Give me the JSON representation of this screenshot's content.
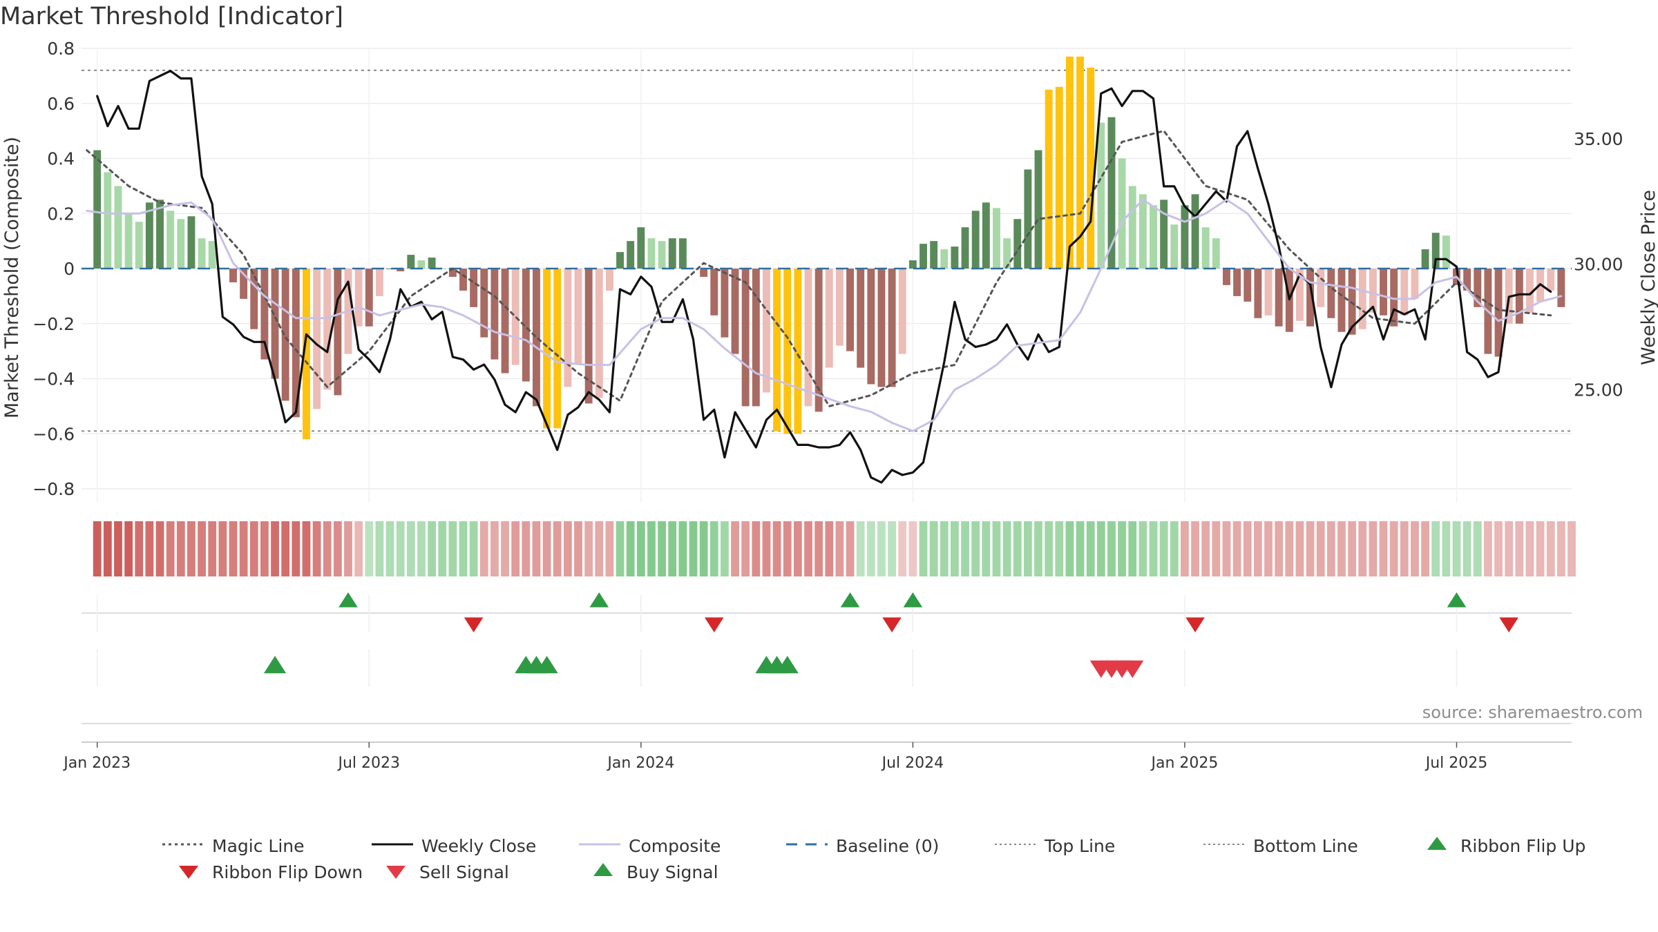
{
  "chart_data": {
    "type": "bar",
    "title": "Market Threshold [Indicator]",
    "ylabel_left": "Market Threshold (Composite)",
    "ylabel_right": "Weekly Close Price",
    "y_left_range": [
      -0.85,
      0.8
    ],
    "y_left_ticks": [
      0.8,
      0.6,
      0.4,
      0.2,
      0,
      -0.2,
      -0.4,
      -0.6,
      -0.8
    ],
    "y_left_tick_labels": [
      "0.8",
      "0.6",
      "0.4",
      "0.2",
      "0",
      "−0.2",
      "−0.4",
      "−0.6",
      "−0.8"
    ],
    "y_right_range": [
      20.5,
      38.6
    ],
    "y_right_ticks": [
      35,
      30,
      25
    ],
    "y_right_tick_labels": [
      "35.00",
      "30.00",
      "25.00"
    ],
    "x_ticks": [
      {
        "label": "Jan 2023",
        "week": 0
      },
      {
        "label": "Jul 2023",
        "week": 26
      },
      {
        "label": "Jan 2024",
        "week": 52
      },
      {
        "label": "Jul 2024",
        "week": 78
      },
      {
        "label": "Jan 2025",
        "week": 104
      },
      {
        "label": "Jul 2025",
        "week": 130
      }
    ],
    "week_range": [
      -1.5,
      141
    ],
    "top_line": 0.72,
    "bottom_line": -0.59,
    "baseline": 0,
    "composite_histogram": [
      0.43,
      0.35,
      0.3,
      0.2,
      0.17,
      0.24,
      0.25,
      0.21,
      0.18,
      0.19,
      0.11,
      0.1,
      0.0,
      -0.05,
      -0.11,
      -0.22,
      -0.33,
      -0.4,
      -0.48,
      -0.54,
      -0.62,
      -0.51,
      -0.44,
      -0.46,
      -0.31,
      -0.21,
      -0.21,
      -0.1,
      0.0,
      -0.01,
      0.05,
      0.03,
      0.04,
      0.0,
      -0.03,
      -0.08,
      -0.14,
      -0.25,
      -0.33,
      -0.38,
      -0.35,
      -0.41,
      -0.5,
      -0.58,
      -0.58,
      -0.43,
      -0.35,
      -0.49,
      -0.47,
      -0.08,
      0.06,
      0.1,
      0.15,
      0.11,
      0.1,
      0.11,
      0.11,
      0.0,
      -0.03,
      -0.17,
      -0.25,
      -0.31,
      -0.5,
      -0.5,
      -0.45,
      -0.59,
      -0.6,
      -0.6,
      -0.5,
      -0.52,
      -0.36,
      -0.28,
      -0.3,
      -0.36,
      -0.42,
      -0.43,
      -0.43,
      -0.31,
      0.03,
      0.09,
      0.1,
      0.07,
      0.08,
      0.15,
      0.21,
      0.24,
      0.22,
      0.11,
      0.18,
      0.36,
      0.43,
      0.65,
      0.66,
      0.77,
      0.77,
      0.73,
      0.53,
      0.55,
      0.4,
      0.3,
      0.27,
      0.23,
      0.25,
      0.16,
      0.23,
      0.27,
      0.15,
      0.11,
      -0.06,
      -0.1,
      -0.12,
      -0.18,
      -0.17,
      -0.21,
      -0.23,
      -0.19,
      -0.21,
      -0.14,
      -0.18,
      -0.23,
      -0.24,
      -0.22,
      -0.16,
      -0.17,
      -0.21,
      -0.17,
      -0.11,
      0.07,
      0.13,
      0.12,
      -0.06,
      -0.08,
      -0.14,
      -0.31,
      -0.32,
      -0.2,
      -0.2,
      -0.16,
      -0.12,
      -0.08,
      -0.14
    ],
    "composite_bar_colors": {
      "positive_light": "#a8d8a8",
      "positive_dark": "#5a8a5a",
      "negative_light": "#ecbcb7",
      "negative_dark": "#a86a62",
      "extreme": "#ffc20e"
    },
    "series": [
      {
        "name": "Magic Line",
        "axis": "left",
        "color": "#555555",
        "points": [
          [
            -1,
            0.43
          ],
          [
            3,
            0.3
          ],
          [
            6,
            0.24
          ],
          [
            10,
            0.22
          ],
          [
            14,
            0.05
          ],
          [
            18,
            -0.25
          ],
          [
            22,
            -0.43
          ],
          [
            26,
            -0.3
          ],
          [
            30,
            -0.1
          ],
          [
            34,
            0.0
          ],
          [
            38,
            -0.1
          ],
          [
            42,
            -0.25
          ],
          [
            46,
            -0.38
          ],
          [
            50,
            -0.48
          ],
          [
            54,
            -0.12
          ],
          [
            58,
            0.02
          ],
          [
            62,
            -0.05
          ],
          [
            66,
            -0.25
          ],
          [
            70,
            -0.5
          ],
          [
            74,
            -0.46
          ],
          [
            78,
            -0.38
          ],
          [
            82,
            -0.35
          ],
          [
            86,
            -0.05
          ],
          [
            90,
            0.18
          ],
          [
            94,
            0.2
          ],
          [
            98,
            0.46
          ],
          [
            102,
            0.5
          ],
          [
            106,
            0.3
          ],
          [
            110,
            0.25
          ],
          [
            114,
            0.07
          ],
          [
            118,
            -0.07
          ],
          [
            122,
            -0.18
          ],
          [
            126,
            -0.2
          ],
          [
            130,
            -0.05
          ],
          [
            134,
            -0.15
          ],
          [
            139,
            -0.17
          ]
        ]
      },
      {
        "name": "Weekly Close",
        "axis": "right",
        "color": "#111111",
        "values": [
          36.7,
          35.5,
          36.3,
          35.4,
          35.4,
          37.3,
          37.5,
          37.7,
          37.4,
          37.4,
          33.5,
          32.4,
          27.9,
          27.6,
          27.1,
          26.9,
          26.9,
          25.4,
          23.7,
          24.1,
          27.2,
          26.8,
          26.5,
          28.6,
          29.3,
          26.6,
          26.2,
          25.7,
          27.0,
          29.0,
          28.3,
          28.5,
          27.8,
          28.1,
          26.3,
          26.2,
          25.8,
          26.0,
          25.4,
          24.4,
          24.1,
          24.9,
          24.6,
          23.6,
          22.6,
          24.0,
          24.3,
          24.9,
          24.6,
          24.1,
          29.0,
          28.8,
          29.5,
          29.1,
          27.7,
          27.7,
          28.6,
          27.0,
          23.8,
          24.2,
          22.3,
          24.1,
          23.4,
          22.7,
          23.8,
          24.2,
          23.5,
          22.8,
          22.8,
          22.7,
          22.7,
          22.8,
          23.3,
          22.6,
          21.5,
          21.3,
          21.8,
          21.6,
          21.7,
          22.1,
          24.1,
          26.1,
          28.5,
          27.0,
          26.7,
          26.8,
          27.0,
          27.6,
          26.8,
          26.2,
          27.2,
          26.5,
          26.7,
          30.7,
          31.1,
          31.7,
          36.8,
          37.0,
          36.3,
          36.9,
          36.9,
          36.6,
          33.1,
          33.1,
          32.3,
          31.9,
          32.4,
          32.9,
          32.5,
          34.7,
          35.3,
          33.8,
          32.4,
          30.7,
          28.6,
          29.6,
          29.2,
          26.7,
          25.1,
          26.8,
          27.5,
          27.9,
          28.3,
          27.0,
          28.2,
          28.0,
          28.2,
          27.0,
          30.2,
          30.2,
          29.9,
          26.5,
          26.2,
          25.5,
          25.7,
          28.7,
          28.8,
          28.8,
          29.2,
          28.9
        ]
      },
      {
        "name": "Composite",
        "axis": "left",
        "color": "#c8c1e6",
        "points": [
          [
            -1,
            0.21
          ],
          [
            1,
            0.2
          ],
          [
            4,
            0.2
          ],
          [
            7,
            0.23
          ],
          [
            9,
            0.24
          ],
          [
            11,
            0.18
          ],
          [
            13,
            0.02
          ],
          [
            16,
            -0.1
          ],
          [
            19,
            -0.18
          ],
          [
            22,
            -0.18
          ],
          [
            25,
            -0.14
          ],
          [
            27,
            -0.17
          ],
          [
            29,
            -0.15
          ],
          [
            31,
            -0.13
          ],
          [
            33,
            -0.14
          ],
          [
            35,
            -0.17
          ],
          [
            38,
            -0.23
          ],
          [
            41,
            -0.26
          ],
          [
            44,
            -0.34
          ],
          [
            47,
            -0.35
          ],
          [
            49,
            -0.35
          ],
          [
            52,
            -0.22
          ],
          [
            54,
            -0.18
          ],
          [
            56,
            -0.18
          ],
          [
            58,
            -0.22
          ],
          [
            60,
            -0.29
          ],
          [
            63,
            -0.38
          ],
          [
            66,
            -0.42
          ],
          [
            69,
            -0.46
          ],
          [
            72,
            -0.5
          ],
          [
            74,
            -0.52
          ],
          [
            76,
            -0.56
          ],
          [
            78,
            -0.59
          ],
          [
            80,
            -0.55
          ],
          [
            82,
            -0.44
          ],
          [
            84,
            -0.4
          ],
          [
            86,
            -0.35
          ],
          [
            88,
            -0.28
          ],
          [
            90,
            -0.27
          ],
          [
            92,
            -0.26
          ],
          [
            94,
            -0.16
          ],
          [
            96,
            0.0
          ],
          [
            98,
            0.17
          ],
          [
            100,
            0.25
          ],
          [
            102,
            0.2
          ],
          [
            104,
            0.17
          ],
          [
            106,
            0.2
          ],
          [
            108,
            0.25
          ],
          [
            110,
            0.2
          ],
          [
            112,
            0.1
          ],
          [
            114,
            0.0
          ],
          [
            116,
            -0.05
          ],
          [
            118,
            -0.06
          ],
          [
            120,
            -0.07
          ],
          [
            122,
            -0.09
          ],
          [
            124,
            -0.11
          ],
          [
            126,
            -0.11
          ],
          [
            128,
            -0.05
          ],
          [
            130,
            -0.03
          ],
          [
            132,
            -0.12
          ],
          [
            134,
            -0.19
          ],
          [
            136,
            -0.16
          ],
          [
            138,
            -0.12
          ],
          [
            140,
            -0.1
          ]
        ]
      },
      {
        "name": "Baseline (0)",
        "axis": "left",
        "color": "#2f6f9f"
      },
      {
        "name": "Top Line",
        "axis": "left",
        "color": "#888888"
      },
      {
        "name": "Bottom Line",
        "axis": "left",
        "color": "#888888"
      }
    ],
    "ribbon": [
      -0.9,
      -0.9,
      -0.9,
      -0.9,
      -0.8,
      -0.8,
      -0.8,
      -0.7,
      -0.7,
      -0.7,
      -0.7,
      -0.7,
      -0.7,
      -0.7,
      -0.7,
      -0.7,
      -0.7,
      -0.8,
      -0.8,
      -0.8,
      -0.8,
      -0.7,
      -0.6,
      -0.6,
      -0.5,
      -0.3,
      0.3,
      0.4,
      0.4,
      0.4,
      0.4,
      0.4,
      0.5,
      0.5,
      0.5,
      0.5,
      0.5,
      -0.4,
      -0.4,
      -0.4,
      -0.5,
      -0.5,
      -0.5,
      -0.5,
      -0.5,
      -0.5,
      -0.5,
      -0.4,
      -0.4,
      -0.4,
      0.6,
      0.7,
      0.7,
      0.7,
      0.7,
      0.7,
      0.7,
      0.7,
      0.7,
      0.6,
      0.5,
      -0.5,
      -0.5,
      -0.6,
      -0.6,
      -0.6,
      -0.6,
      -0.6,
      -0.6,
      -0.6,
      -0.6,
      -0.5,
      -0.5,
      0.3,
      0.3,
      0.3,
      0.3,
      -0.2,
      -0.2,
      0.5,
      0.5,
      0.5,
      0.5,
      0.5,
      0.5,
      0.5,
      0.5,
      0.5,
      0.5,
      0.5,
      0.5,
      0.5,
      0.5,
      0.6,
      0.6,
      0.6,
      0.6,
      0.6,
      0.6,
      0.6,
      0.5,
      0.5,
      0.5,
      0.5,
      -0.4,
      -0.4,
      -0.4,
      -0.4,
      -0.4,
      -0.4,
      -0.4,
      -0.4,
      -0.4,
      -0.4,
      -0.4,
      -0.4,
      -0.4,
      -0.4,
      -0.4,
      -0.4,
      -0.4,
      -0.4,
      -0.4,
      -0.4,
      -0.4,
      -0.4,
      -0.4,
      -0.4,
      0.4,
      0.4,
      0.4,
      0.4,
      0.4,
      -0.3,
      -0.3,
      -0.3,
      -0.3,
      -0.3,
      -0.3,
      -0.3,
      -0.3,
      -0.3
    ],
    "ribbon_colors": {
      "up": "#5ab865",
      "down": "#c8514e"
    },
    "ribbon_flip_up_weeks": [
      24,
      48,
      72,
      78,
      130
    ],
    "ribbon_flip_down_weeks": [
      36,
      59,
      76,
      105,
      135
    ],
    "buy_signal_weeks": [
      17,
      41,
      42,
      43,
      64,
      65,
      66
    ],
    "sell_signal_weeks": [
      96,
      97,
      98,
      99
    ],
    "marker_colors": {
      "flip_up": "#2e9a44",
      "flip_down": "#d62728",
      "buy": "#2e9a44",
      "sell": "#e23a46"
    },
    "source_note": "source: sharemaestro.com",
    "legend": [
      {
        "label": "Magic Line",
        "style": "dotted",
        "color": "#555555"
      },
      {
        "label": "Weekly Close",
        "style": "solid",
        "color": "#111111"
      },
      {
        "label": "Composite",
        "style": "solid",
        "color": "#c8c1e6"
      },
      {
        "label": "Baseline (0)",
        "style": "dashed",
        "color": "#2f6f9f"
      },
      {
        "label": "Top Line",
        "style": "dotted-light",
        "color": "#888888"
      },
      {
        "label": "Bottom Line",
        "style": "dotted-light",
        "color": "#888888"
      },
      {
        "label": "Ribbon Flip Up",
        "style": "triangle-up",
        "color": "#2e9a44"
      },
      {
        "label": "Ribbon Flip Down",
        "style": "triangle-down",
        "color": "#d62728"
      },
      {
        "label": "Sell Signal",
        "style": "triangle-down",
        "color": "#e23a46"
      },
      {
        "label": "Buy Signal",
        "style": "triangle-up",
        "color": "#2e9a44"
      }
    ]
  }
}
